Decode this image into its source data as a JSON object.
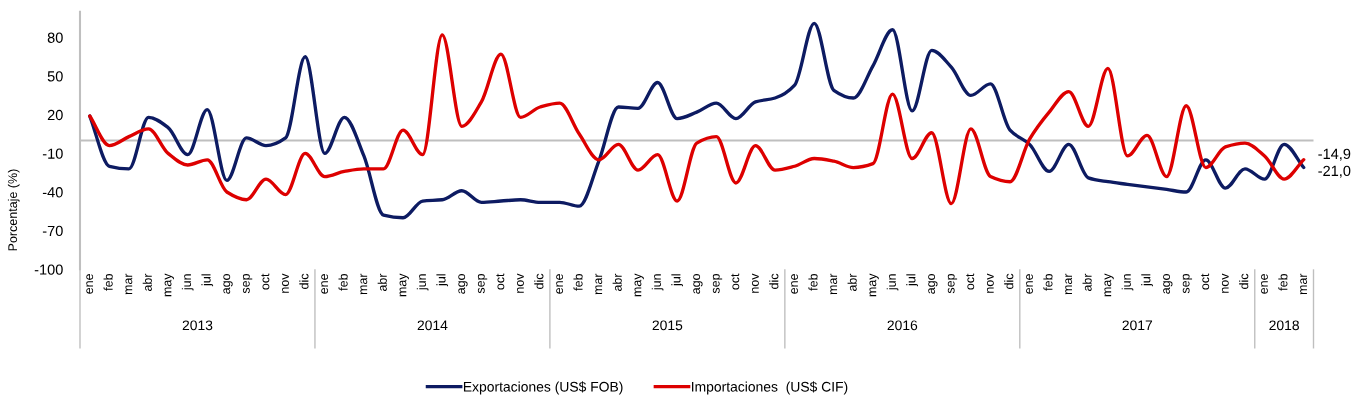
{
  "chart_data": {
    "type": "line",
    "ylabel": "Porcentaje (%)",
    "categories": [
      "ene",
      "feb",
      "mar",
      "abr",
      "may",
      "jun",
      "jul",
      "ago",
      "sep",
      "oct",
      "nov",
      "dic",
      "ene",
      "feb",
      "mar",
      "abr",
      "may",
      "jun",
      "jul",
      "ago",
      "sep",
      "oct",
      "nov",
      "dic",
      "ene",
      "feb",
      "mar",
      "abr",
      "may",
      "jun",
      "jul",
      "ago",
      "sep",
      "oct",
      "nov",
      "dic",
      "ene",
      "feb",
      "mar",
      "abr",
      "may",
      "jun",
      "jul",
      "ago",
      "sep",
      "oct",
      "nov",
      "dic",
      "ene",
      "feb",
      "mar",
      "abr",
      "may",
      "jun",
      "jul",
      "ago",
      "sep",
      "oct",
      "nov",
      "dic",
      "ene",
      "feb",
      "mar"
    ],
    "series": [
      {
        "name": "Exportaciones (US$ FOB)",
        "color": "#0d1b62",
        "values": [
          19,
          -20,
          -22,
          18,
          10,
          -11,
          24,
          -31,
          2,
          -4,
          2,
          65,
          -10,
          18,
          -12,
          -58,
          -60,
          -47,
          -46,
          -39,
          -48,
          -47,
          -46,
          -48,
          -48,
          -51,
          -16,
          26,
          25,
          45,
          17,
          22,
          29,
          17,
          30,
          33,
          43,
          91,
          39,
          33,
          58,
          86,
          23,
          70,
          57,
          35,
          44,
          8,
          -3,
          -24,
          -3,
          -29,
          -32,
          -34,
          -36,
          -38,
          -40,
          -15,
          -37,
          -22,
          -30,
          -3,
          -21.0
        ],
        "value_labels": [
          null,
          null,
          null,
          null,
          null,
          null,
          null,
          null,
          null,
          null,
          null,
          null,
          null,
          null,
          null,
          null,
          null,
          null,
          null,
          null,
          null,
          null,
          null,
          null,
          null,
          null,
          null,
          null,
          null,
          null,
          null,
          null,
          null,
          null,
          null,
          null,
          null,
          null,
          null,
          null,
          null,
          null,
          null,
          null,
          null,
          null,
          null,
          null,
          null,
          null,
          null,
          null,
          null,
          null,
          null,
          null,
          null,
          null,
          null,
          null,
          null,
          null,
          "-21,0"
        ]
      },
      {
        "name": "Importaciones  (US$ CIF)",
        "color": "#dd0000",
        "values": [
          19,
          -4,
          3,
          9,
          -10,
          -19,
          -15,
          -40,
          -46,
          -30,
          -42,
          -10,
          -28,
          -24,
          -22,
          -22,
          8,
          -11,
          82,
          11,
          30,
          67,
          18,
          26,
          29,
          5,
          -15,
          -3,
          -23,
          -11,
          -47,
          -2,
          3,
          -33,
          -4,
          -23,
          -20,
          -14,
          -16,
          -21,
          -18,
          36,
          -14,
          6,
          -49,
          9,
          -28,
          -32,
          1,
          22,
          38,
          11,
          56,
          -12,
          4,
          -28,
          27,
          -21,
          -5,
          -2,
          -12,
          -30,
          -14.9
        ],
        "value_labels": [
          null,
          null,
          null,
          null,
          null,
          null,
          null,
          null,
          null,
          null,
          null,
          null,
          null,
          null,
          null,
          null,
          null,
          null,
          null,
          null,
          null,
          null,
          null,
          null,
          null,
          null,
          null,
          null,
          null,
          null,
          null,
          null,
          null,
          null,
          null,
          null,
          null,
          null,
          null,
          null,
          null,
          null,
          null,
          null,
          null,
          null,
          null,
          null,
          null,
          null,
          null,
          null,
          null,
          null,
          null,
          null,
          null,
          null,
          null,
          null,
          null,
          null,
          "-14,9"
        ]
      }
    ],
    "ylim": [
      -100,
      100
    ],
    "yticks": [
      -100,
      -70,
      -40,
      -10,
      20,
      50,
      80
    ],
    "ref_lines": [
      {
        "axis": "y",
        "value": 0,
        "color": "#bfbfbf"
      }
    ],
    "annotations": [
      "2013",
      "2014",
      "2015",
      "2016",
      "2017",
      "2018"
    ],
    "legend": "bottom",
    "grid": false
  }
}
